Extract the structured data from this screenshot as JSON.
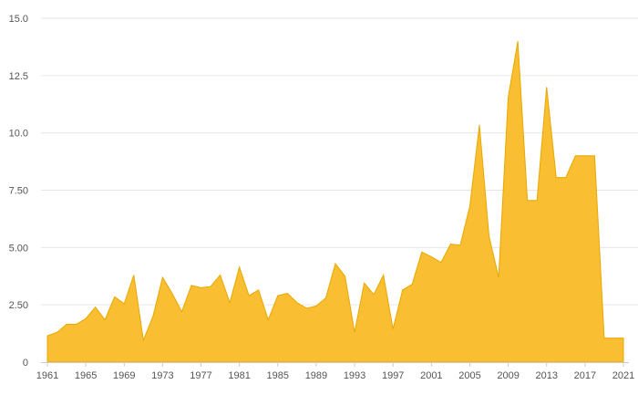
{
  "chart_data": {
    "type": "area",
    "title": "",
    "xlabel": "",
    "ylabel": "",
    "x": [
      1961,
      1962,
      1963,
      1964,
      1965,
      1966,
      1967,
      1968,
      1969,
      1970,
      1971,
      1972,
      1973,
      1974,
      1975,
      1976,
      1977,
      1978,
      1979,
      1980,
      1981,
      1982,
      1983,
      1984,
      1985,
      1986,
      1987,
      1988,
      1989,
      1990,
      1991,
      1992,
      1993,
      1994,
      1995,
      1996,
      1997,
      1998,
      1999,
      2000,
      2001,
      2002,
      2003,
      2004,
      2005,
      2006,
      2007,
      2008,
      2009,
      2010,
      2011,
      2012,
      2013,
      2014,
      2015,
      2016,
      2017,
      2018,
      2019,
      2020,
      2021
    ],
    "series": [
      {
        "name": "",
        "color": "#f9bb26",
        "values": [
          1.15,
          1.3,
          1.65,
          1.65,
          1.9,
          2.4,
          1.85,
          2.85,
          2.55,
          3.8,
          0.95,
          2.0,
          3.7,
          3.0,
          2.2,
          3.35,
          3.25,
          3.3,
          3.8,
          2.6,
          4.15,
          2.9,
          3.15,
          1.85,
          2.9,
          3.0,
          2.6,
          2.35,
          2.45,
          2.8,
          4.3,
          3.75,
          1.3,
          3.45,
          2.95,
          3.8,
          1.45,
          3.15,
          3.4,
          4.8,
          4.6,
          4.35,
          5.15,
          5.1,
          6.8,
          10.35,
          5.5,
          3.7,
          11.55,
          14.0,
          7.05,
          7.05,
          12.0,
          8.05,
          8.05,
          9.0,
          9.0,
          9.0,
          1.05,
          1.05,
          1.05
        ]
      }
    ],
    "x_ticks": [
      "1961",
      "1965",
      "1969",
      "1973",
      "1977",
      "1981",
      "1985",
      "1989",
      "1993",
      "1997",
      "2001",
      "2005",
      "2009",
      "2013",
      "2017",
      "2021"
    ],
    "y_ticks": [
      "0",
      "2.50",
      "5.00",
      "7.50",
      "10.0",
      "12.5",
      "15.0"
    ],
    "ylim": [
      0,
      15
    ],
    "xlim": [
      1961,
      2021
    ],
    "grid": true,
    "legend": "none"
  }
}
